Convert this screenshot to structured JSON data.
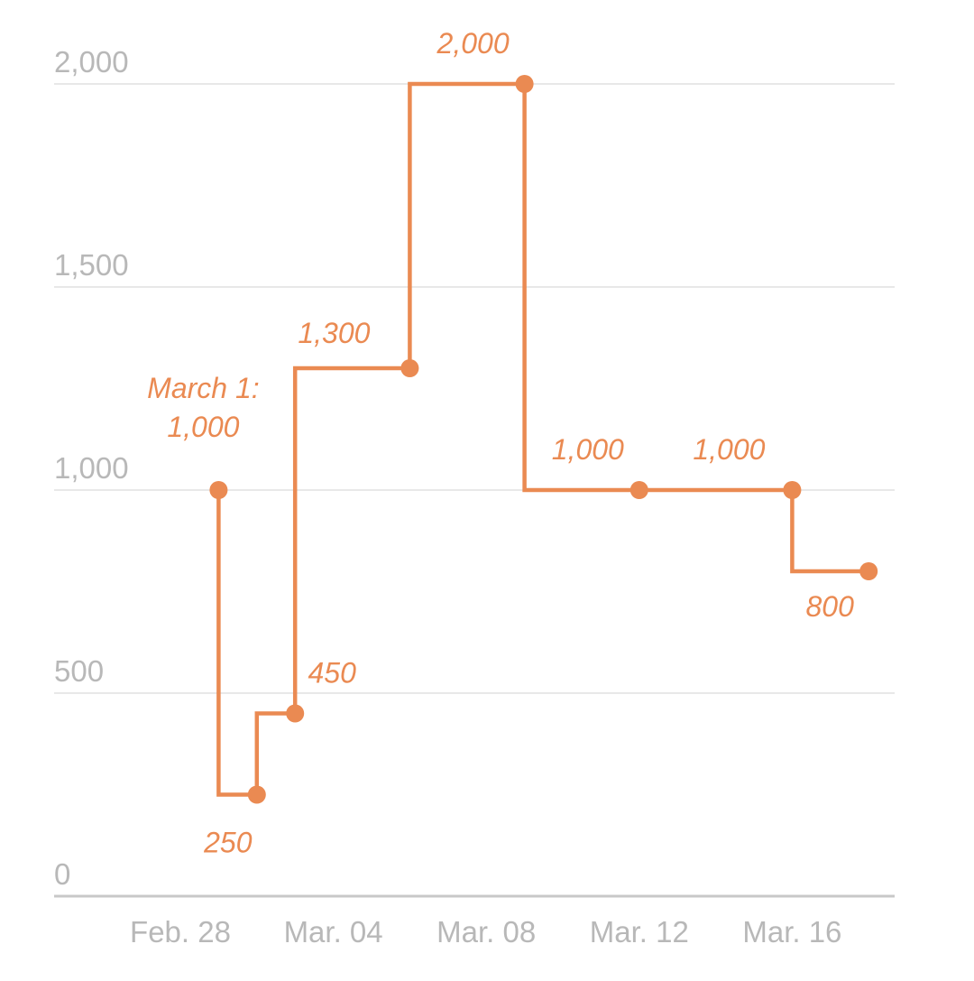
{
  "chart_data": {
    "type": "line",
    "step": "before",
    "title": "",
    "xlabel": "",
    "ylabel": "",
    "ylim": [
      0,
      2000
    ],
    "yticks": [
      0,
      500,
      1000,
      1500,
      2000
    ],
    "ytick_labels": [
      "0",
      "500",
      "1,000",
      "1,500",
      "2,000"
    ],
    "xticks": [
      "02-28",
      "03-04",
      "03-08",
      "03-12",
      "03-16"
    ],
    "xtick_labels": [
      "Feb. 28",
      "Mar. 04",
      "Mar. 08",
      "Mar. 12",
      "Mar. 16"
    ],
    "grid": "horizontal",
    "color": "#ea8a52",
    "points": [
      {
        "x": "03-01",
        "y": 1000,
        "label": [
          "March 1:",
          "1,000"
        ]
      },
      {
        "x": "03-02",
        "y": 250,
        "label": [
          "250"
        ]
      },
      {
        "x": "03-03",
        "y": 450,
        "label": [
          "450"
        ]
      },
      {
        "x": "03-06",
        "y": 1300,
        "label": [
          "1,300"
        ]
      },
      {
        "x": "03-09",
        "y": 2000,
        "label": [
          "2,000"
        ]
      },
      {
        "x": "03-12",
        "y": 1000,
        "label": [
          "1,000"
        ]
      },
      {
        "x": "03-16",
        "y": 1000,
        "label": [
          "1,000"
        ]
      },
      {
        "x": "03-18",
        "y": 800,
        "label": [
          "800"
        ]
      }
    ]
  }
}
